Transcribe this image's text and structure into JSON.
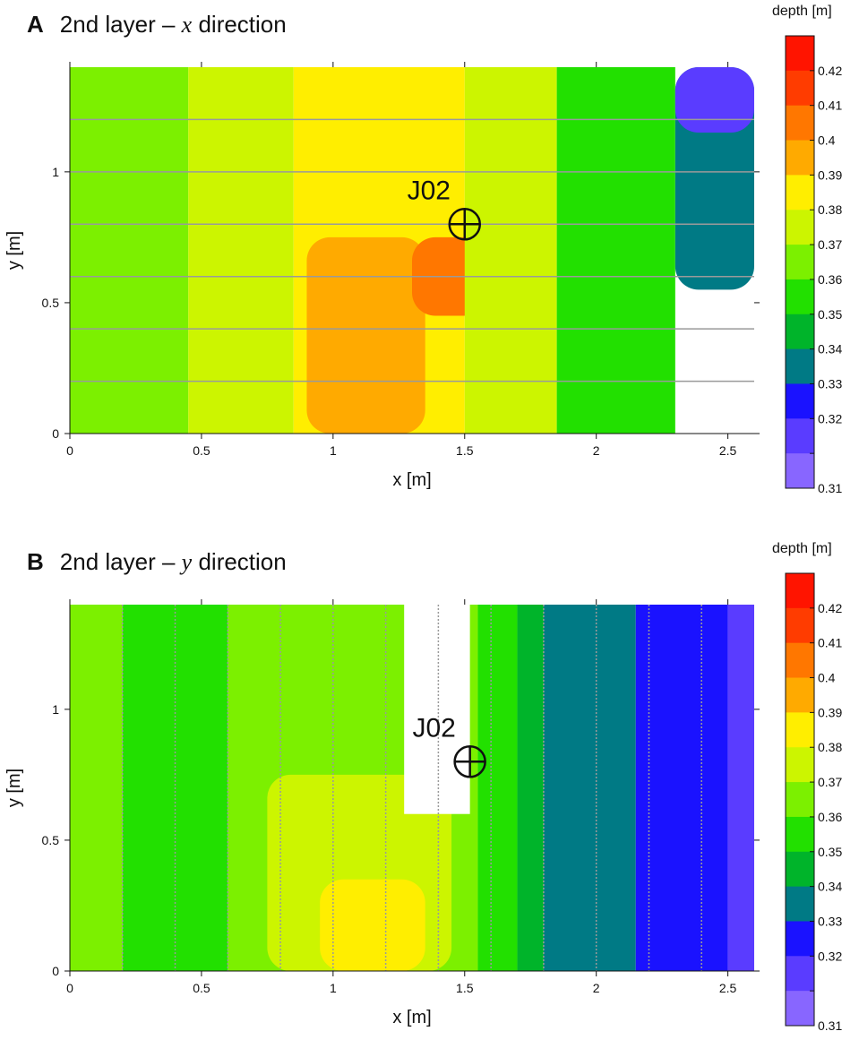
{
  "chart_data": [
    {
      "panel_letter": "A",
      "title": "2nd layer –",
      "title_var": "x",
      "title_suffix": "direction",
      "type": "heatmap",
      "xlabel": "x [m]",
      "ylabel": "y [m]",
      "xlim": [
        0,
        2.6
      ],
      "ylim": [
        0,
        1.4
      ],
      "xticks": [
        "0",
        "0.5",
        "1",
        "1.5",
        "2",
        "2.5"
      ],
      "yticks": [
        "0",
        "0.5",
        "1"
      ],
      "colorbar_title": "depth [m]",
      "colorbar_ticks": [
        "0.31",
        "0.32",
        "0.33",
        "0.34",
        "0.35",
        "0.36",
        "0.37",
        "0.38",
        "0.39",
        "0.4",
        "0.41",
        "0.42"
      ],
      "survey_lines": {
        "direction": "x",
        "positions": [
          0.2,
          0.4,
          0.6,
          0.8,
          1.0,
          1.2
        ]
      },
      "marker": {
        "label": "J02",
        "x": 1.5,
        "y": 0.8
      },
      "contour_regions": [
        {
          "depth": 0.37,
          "x": [
            0.0,
            0.45
          ]
        },
        {
          "depth": 0.38,
          "x": [
            0.45,
            0.85
          ]
        },
        {
          "depth": 0.39,
          "x": [
            0.85,
            1.5
          ]
        },
        {
          "depth": 0.4,
          "x": [
            0.9,
            1.35
          ],
          "y": [
            0.0,
            0.75
          ]
        },
        {
          "depth": 0.41,
          "x": [
            1.3,
            1.7
          ],
          "y": [
            0.45,
            0.75
          ]
        },
        {
          "depth": 0.38,
          "x": [
            1.5,
            1.85
          ]
        },
        {
          "depth": 0.36,
          "x": [
            1.85,
            2.3
          ]
        },
        {
          "depth": 0.34,
          "x": [
            2.3,
            2.6
          ],
          "y": [
            0.55,
            1.4
          ]
        },
        {
          "depth": 0.32,
          "x": [
            2.3,
            2.6
          ],
          "y": [
            1.15,
            1.4
          ]
        }
      ]
    },
    {
      "panel_letter": "B",
      "title": "2nd layer –",
      "title_var": "y",
      "title_suffix": "direction",
      "type": "heatmap",
      "xlabel": "x [m]",
      "ylabel": "y [m]",
      "xlim": [
        0,
        2.6
      ],
      "ylim": [
        0,
        1.4
      ],
      "xticks": [
        "0",
        "0.5",
        "1",
        "1.5",
        "2",
        "2.5"
      ],
      "yticks": [
        "0",
        "0.5",
        "1"
      ],
      "colorbar_title": "depth [m]",
      "colorbar_ticks": [
        "0.31",
        "0.32",
        "0.33",
        "0.34",
        "0.35",
        "0.36",
        "0.37",
        "0.38",
        "0.39",
        "0.4",
        "0.41",
        "0.42"
      ],
      "survey_lines": {
        "direction": "y",
        "positions": [
          0.2,
          0.4,
          0.6,
          0.8,
          1.0,
          1.2,
          1.4,
          1.6,
          1.8,
          2.0,
          2.2,
          2.4
        ]
      },
      "marker": {
        "label": "J02",
        "x": 1.52,
        "y": 0.8
      },
      "blank_region": {
        "x": [
          1.27,
          1.52
        ],
        "y": [
          0.6,
          1.4
        ]
      },
      "contour_regions": [
        {
          "depth": 0.37,
          "x": [
            0.0,
            0.2
          ]
        },
        {
          "depth": 0.36,
          "x": [
            0.2,
            0.6
          ]
        },
        {
          "depth": 0.37,
          "x": [
            0.6,
            1.55
          ]
        },
        {
          "depth": 0.38,
          "x": [
            0.75,
            1.45
          ],
          "y": [
            0.0,
            0.75
          ]
        },
        {
          "depth": 0.39,
          "x": [
            0.95,
            1.35
          ],
          "y": [
            0.0,
            0.35
          ]
        },
        {
          "depth": 0.36,
          "x": [
            1.55,
            1.7
          ]
        },
        {
          "depth": 0.35,
          "x": [
            1.7,
            1.8
          ]
        },
        {
          "depth": 0.34,
          "x": [
            1.8,
            2.15
          ]
        },
        {
          "depth": 0.33,
          "x": [
            2.15,
            2.5
          ]
        },
        {
          "depth": 0.32,
          "x": [
            2.5,
            2.6
          ]
        }
      ]
    }
  ]
}
